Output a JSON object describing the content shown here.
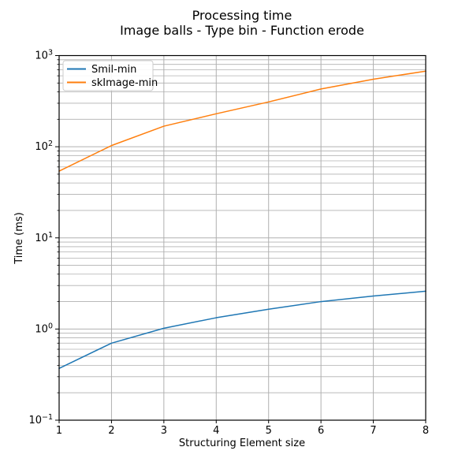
{
  "title": {
    "line1": "Processing time",
    "line2": "Image balls - Type bin - Function erode"
  },
  "chart_data": {
    "type": "line",
    "x": [
      1,
      2,
      3,
      4,
      5,
      6,
      7,
      8
    ],
    "series": [
      {
        "name": "Smil-min",
        "color": "#1f77b4",
        "values": [
          0.37,
          0.7,
          1.02,
          1.33,
          1.65,
          2.0,
          2.3,
          2.6
        ]
      },
      {
        "name": "skImage-min",
        "color": "#ff7f0e",
        "values": [
          54,
          103,
          168,
          230,
          310,
          430,
          550,
          675
        ]
      }
    ],
    "xlabel": "Structuring Element size",
    "ylabel": "Time (ms)",
    "x_ticks": [
      1,
      2,
      3,
      4,
      5,
      6,
      7,
      8
    ],
    "xlim": [
      1,
      8
    ],
    "y_scale": "log",
    "ylim": [
      0.1,
      1000
    ],
    "y_tick_exponents": [
      -1,
      0,
      1,
      2,
      3
    ],
    "grid": "major and minor horizontal, major vertical, solid gray",
    "grid_color": "#b0b0b0",
    "legend_position": "upper left",
    "line_width": 1.5,
    "spine_color": "#000000",
    "legend_border_color": "#cccccc",
    "background_color": "#ffffff"
  }
}
